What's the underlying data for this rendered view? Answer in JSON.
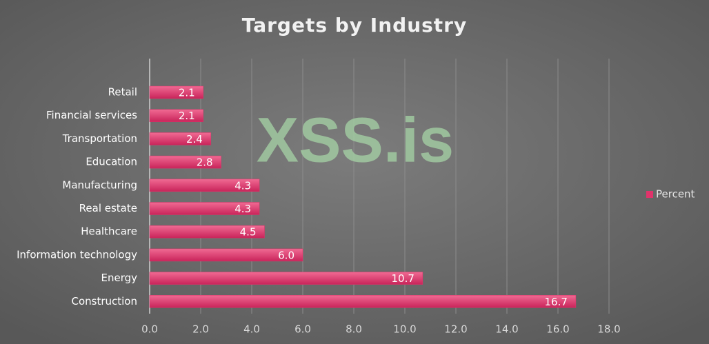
{
  "chart_data": {
    "type": "hbar",
    "title": "Targets by Industry",
    "watermark": "XSS.is",
    "categories": [
      "Retail",
      "Financial services",
      "Transportation",
      "Education",
      "Manufacturing",
      "Real estate",
      "Healthcare",
      "Information technology",
      "Energy",
      "Construction"
    ],
    "series": [
      {
        "name": "Percent",
        "color": "#e0336b",
        "values": [
          2.1,
          2.1,
          2.4,
          2.8,
          4.3,
          4.3,
          4.5,
          6.0,
          10.7,
          16.7
        ],
        "value_labels": [
          "2.1",
          "2.1",
          "2.4",
          "2.8",
          "4.3",
          "4.3",
          "4.5",
          "6.0",
          "10.7",
          "16.7"
        ]
      }
    ],
    "xlim": [
      0,
      18
    ],
    "xticks": [
      {
        "value": 0,
        "label": "0.0"
      },
      {
        "value": 2,
        "label": "2.0"
      },
      {
        "value": 4,
        "label": "4.0"
      },
      {
        "value": 6,
        "label": "6.0"
      },
      {
        "value": 8,
        "label": "8.0"
      },
      {
        "value": 10,
        "label": "10.0"
      },
      {
        "value": 12,
        "label": "12.0"
      },
      {
        "value": 14,
        "label": "14.0"
      },
      {
        "value": 16,
        "label": "16.0"
      },
      {
        "value": 18,
        "label": "18.0"
      }
    ],
    "grid": true,
    "legend": "right"
  }
}
